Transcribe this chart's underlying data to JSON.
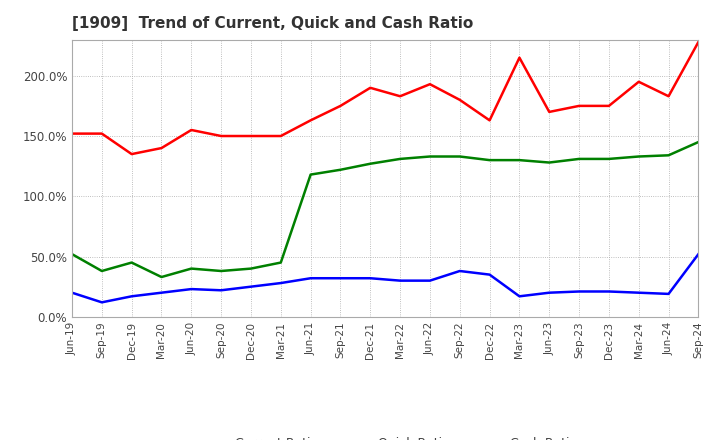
{
  "title": "[1909]  Trend of Current, Quick and Cash Ratio",
  "x_labels": [
    "Jun-19",
    "Sep-19",
    "Dec-19",
    "Mar-20",
    "Jun-20",
    "Sep-20",
    "Dec-20",
    "Mar-21",
    "Jun-21",
    "Sep-21",
    "Dec-21",
    "Mar-22",
    "Jun-22",
    "Sep-22",
    "Dec-22",
    "Mar-23",
    "Jun-23",
    "Sep-23",
    "Dec-23",
    "Mar-24",
    "Jun-24",
    "Sep-24"
  ],
  "current_ratio": [
    152,
    152,
    135,
    140,
    155,
    150,
    150,
    150,
    163,
    175,
    190,
    183,
    193,
    180,
    163,
    215,
    170,
    175,
    175,
    195,
    183,
    228
  ],
  "quick_ratio": [
    52,
    38,
    45,
    33,
    40,
    38,
    40,
    45,
    118,
    122,
    127,
    131,
    133,
    133,
    130,
    130,
    128,
    131,
    131,
    133,
    134,
    145
  ],
  "cash_ratio": [
    20,
    12,
    17,
    20,
    23,
    22,
    25,
    28,
    32,
    32,
    32,
    30,
    30,
    38,
    35,
    17,
    20,
    21,
    21,
    20,
    19,
    52
  ],
  "current_color": "#ff0000",
  "quick_color": "#008000",
  "cash_color": "#0000ff",
  "ylim": [
    0,
    230
  ],
  "yticks": [
    0,
    50,
    100,
    150,
    200
  ],
  "background_color": "#ffffff",
  "grid_color": "#aaaaaa"
}
